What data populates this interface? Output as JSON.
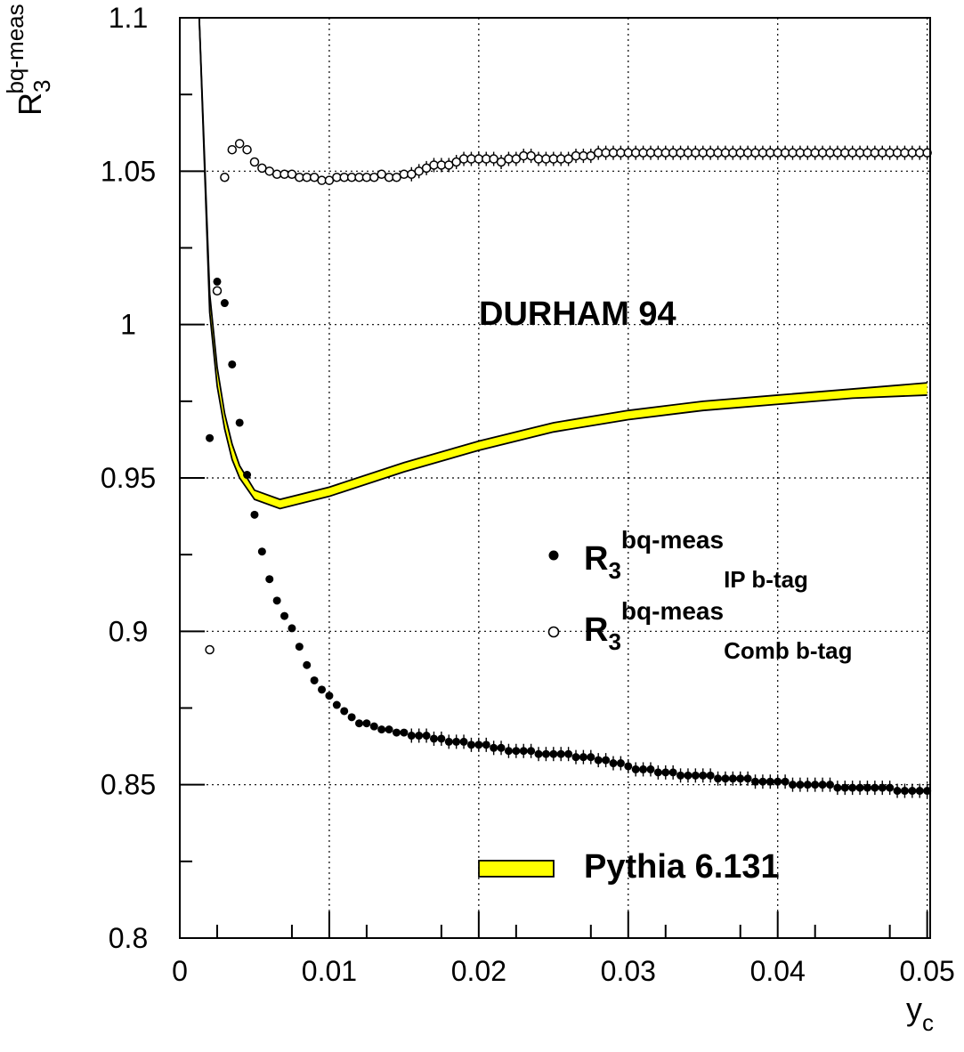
{
  "chart_data": {
    "type": "scatter",
    "xlabel": "y",
    "xlabel_sub": "c",
    "ylabel": "R",
    "ylabel_sup": "bq-meas",
    "ylabel_sub": "3",
    "xlim": [
      0,
      0.0502
    ],
    "ylim": [
      0.8,
      1.1
    ],
    "xticks": [
      0,
      0.01,
      0.02,
      0.03,
      0.04,
      0.05
    ],
    "xtick_labels": [
      "0",
      "0.01",
      "0.02",
      "0.03",
      "0.04",
      "0.05"
    ],
    "yticks": [
      0.8,
      0.85,
      0.9,
      0.95,
      1.0,
      1.05,
      1.1
    ],
    "ytick_labels": [
      "0.8",
      "0.85",
      "0.9",
      "0.95",
      "1",
      "1.05",
      "1.1"
    ],
    "grid": true,
    "annotation": "DURHAM 94",
    "legend": [
      {
        "key": "ip",
        "main": "R",
        "sub3": "3",
        "sup": "bq-meas",
        "sub": "IP b-tag"
      },
      {
        "key": "comb",
        "main": "R",
        "sub3": "3",
        "sup": "bq-meas",
        "sub": "Comb b-tag"
      },
      {
        "key": "pythia",
        "label": "Pythia 6.131"
      }
    ],
    "colors": {
      "band": "#ffff00",
      "ink": "#000000",
      "grid": "#000000"
    },
    "series": [
      {
        "key": "ip",
        "marker": "filled-circle",
        "x": [
          0.002,
          0.0025,
          0.003,
          0.0035,
          0.004,
          0.0045,
          0.005,
          0.0055,
          0.006,
          0.0065,
          0.007,
          0.0075,
          0.008,
          0.0085,
          0.009,
          0.0095,
          0.01,
          0.0105,
          0.011,
          0.0115,
          0.012,
          0.0125,
          0.013,
          0.0135,
          0.014,
          0.0145,
          0.015,
          0.0155,
          0.016,
          0.0165,
          0.017,
          0.0175,
          0.018,
          0.0185,
          0.019,
          0.0195,
          0.02,
          0.0205,
          0.021,
          0.0215,
          0.022,
          0.0225,
          0.023,
          0.0235,
          0.024,
          0.0245,
          0.025,
          0.0255,
          0.026,
          0.0265,
          0.027,
          0.0275,
          0.028,
          0.0285,
          0.029,
          0.0295,
          0.03,
          0.0305,
          0.031,
          0.0315,
          0.032,
          0.0325,
          0.033,
          0.0335,
          0.034,
          0.0345,
          0.035,
          0.0355,
          0.036,
          0.0365,
          0.037,
          0.0375,
          0.038,
          0.0385,
          0.039,
          0.0395,
          0.04,
          0.0405,
          0.041,
          0.0415,
          0.042,
          0.0425,
          0.043,
          0.0435,
          0.044,
          0.0445,
          0.045,
          0.0455,
          0.046,
          0.0465,
          0.047,
          0.0475,
          0.048,
          0.0485,
          0.049,
          0.0495,
          0.05
        ],
        "y": [
          0.963,
          1.014,
          1.007,
          0.987,
          0.968,
          0.951,
          0.938,
          0.926,
          0.917,
          0.91,
          0.905,
          0.901,
          0.895,
          0.889,
          0.884,
          0.881,
          0.879,
          0.876,
          0.874,
          0.872,
          0.87,
          0.87,
          0.869,
          0.868,
          0.868,
          0.867,
          0.867,
          0.866,
          0.866,
          0.866,
          0.865,
          0.865,
          0.864,
          0.864,
          0.864,
          0.863,
          0.863,
          0.863,
          0.862,
          0.862,
          0.861,
          0.861,
          0.861,
          0.861,
          0.86,
          0.86,
          0.86,
          0.86,
          0.86,
          0.859,
          0.859,
          0.859,
          0.858,
          0.858,
          0.857,
          0.857,
          0.856,
          0.855,
          0.855,
          0.855,
          0.854,
          0.854,
          0.854,
          0.853,
          0.853,
          0.853,
          0.853,
          0.853,
          0.852,
          0.852,
          0.852,
          0.852,
          0.852,
          0.851,
          0.851,
          0.851,
          0.851,
          0.851,
          0.85,
          0.85,
          0.85,
          0.85,
          0.85,
          0.85,
          0.849,
          0.849,
          0.849,
          0.849,
          0.849,
          0.849,
          0.849,
          0.849,
          0.848,
          0.848,
          0.848,
          0.848,
          0.848
        ]
      },
      {
        "key": "comb",
        "marker": "open-circle",
        "x": [
          0.002,
          0.0025,
          0.003,
          0.0035,
          0.004,
          0.0045,
          0.005,
          0.0055,
          0.006,
          0.0065,
          0.007,
          0.0075,
          0.008,
          0.0085,
          0.009,
          0.0095,
          0.01,
          0.0105,
          0.011,
          0.0115,
          0.012,
          0.0125,
          0.013,
          0.0135,
          0.014,
          0.0145,
          0.015,
          0.0155,
          0.016,
          0.0165,
          0.017,
          0.0175,
          0.018,
          0.0185,
          0.019,
          0.0195,
          0.02,
          0.0205,
          0.021,
          0.0215,
          0.022,
          0.0225,
          0.023,
          0.0235,
          0.024,
          0.0245,
          0.025,
          0.0255,
          0.026,
          0.0265,
          0.027,
          0.0275,
          0.028,
          0.0285,
          0.029,
          0.0295,
          0.03,
          0.0305,
          0.031,
          0.0315,
          0.032,
          0.0325,
          0.033,
          0.0335,
          0.034,
          0.0345,
          0.035,
          0.0355,
          0.036,
          0.0365,
          0.037,
          0.0375,
          0.038,
          0.0385,
          0.039,
          0.0395,
          0.04,
          0.0405,
          0.041,
          0.0415,
          0.042,
          0.0425,
          0.043,
          0.0435,
          0.044,
          0.0445,
          0.045,
          0.0455,
          0.046,
          0.0465,
          0.047,
          0.0475,
          0.048,
          0.0485,
          0.049,
          0.0495,
          0.05
        ],
        "y": [
          0.894,
          1.011,
          1.048,
          1.057,
          1.059,
          1.057,
          1.053,
          1.051,
          1.05,
          1.049,
          1.049,
          1.049,
          1.048,
          1.048,
          1.048,
          1.047,
          1.047,
          1.048,
          1.048,
          1.048,
          1.048,
          1.048,
          1.048,
          1.049,
          1.048,
          1.048,
          1.049,
          1.049,
          1.05,
          1.051,
          1.052,
          1.052,
          1.052,
          1.053,
          1.054,
          1.054,
          1.054,
          1.054,
          1.054,
          1.053,
          1.054,
          1.054,
          1.055,
          1.055,
          1.054,
          1.054,
          1.054,
          1.054,
          1.054,
          1.055,
          1.055,
          1.055,
          1.056,
          1.056,
          1.056,
          1.056,
          1.056,
          1.056,
          1.056,
          1.056,
          1.056,
          1.056,
          1.056,
          1.056,
          1.056,
          1.056,
          1.056,
          1.056,
          1.056,
          1.056,
          1.056,
          1.056,
          1.056,
          1.056,
          1.056,
          1.056,
          1.056,
          1.056,
          1.056,
          1.056,
          1.056,
          1.056,
          1.056,
          1.056,
          1.056,
          1.056,
          1.056,
          1.056,
          1.056,
          1.056,
          1.056,
          1.056,
          1.056,
          1.056,
          1.056,
          1.056,
          1.056
        ]
      },
      {
        "key": "pythia",
        "marker": "band",
        "x": [
          0.0013,
          0.002,
          0.0025,
          0.003,
          0.0035,
          0.004,
          0.005,
          0.0067,
          0.01,
          0.015,
          0.02,
          0.025,
          0.03,
          0.035,
          0.04,
          0.045,
          0.05
        ],
        "y_low": [
          1.1,
          1.004,
          0.98,
          0.966,
          0.956,
          0.95,
          0.943,
          0.94,
          0.944,
          0.952,
          0.959,
          0.965,
          0.969,
          0.972,
          0.974,
          0.976,
          0.977
        ],
        "y_high": [
          1.1,
          1.01,
          0.986,
          0.971,
          0.961,
          0.954,
          0.946,
          0.943,
          0.947,
          0.955,
          0.962,
          0.968,
          0.972,
          0.975,
          0.977,
          0.979,
          0.981
        ]
      }
    ]
  }
}
